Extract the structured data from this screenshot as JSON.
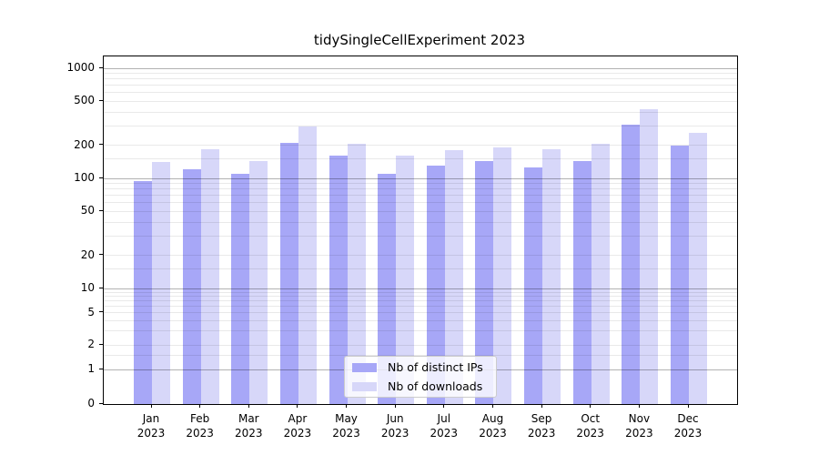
{
  "title": "tidySingleCellExperiment 2023",
  "chart_data": {
    "type": "bar",
    "title": "tidySingleCellExperiment 2023",
    "categories": [
      "Jan 2023",
      "Feb 2023",
      "Mar 2023",
      "Apr 2023",
      "May 2023",
      "Jun 2023",
      "Jul 2023",
      "Aug 2023",
      "Sep 2023",
      "Oct 2023",
      "Nov 2023",
      "Dec 2023"
    ],
    "series": [
      {
        "name": "Nb of distinct IPs",
        "color": "#a7a7f7",
        "values": [
          95,
          120,
          110,
          210,
          160,
          110,
          130,
          145,
          125,
          145,
          310,
          200
        ]
      },
      {
        "name": "Nb of downloads",
        "color": "#d7d7f9",
        "values": [
          140,
          185,
          145,
          295,
          205,
          160,
          180,
          190,
          185,
          205,
          425,
          260
        ]
      }
    ],
    "xlabel": "",
    "ylabel": "",
    "yscale": "symlog",
    "ylim": [
      0,
      1280
    ],
    "yticks": [
      0,
      1,
      2,
      5,
      10,
      20,
      50,
      100,
      200,
      500,
      1000
    ],
    "grid": true,
    "legend_position": "lower-center"
  },
  "axes": {
    "y_tick_labels": [
      "0",
      "1",
      "2",
      "5",
      "10",
      "20",
      "50",
      "100",
      "200",
      "500",
      "1000"
    ],
    "x_tick_line1": [
      "Jan",
      "Feb",
      "Mar",
      "Apr",
      "May",
      "Jun",
      "Jul",
      "Aug",
      "Sep",
      "Oct",
      "Nov",
      "Dec"
    ],
    "x_tick_line2": "2023",
    "gridline_major_values": [
      1,
      10,
      100,
      1000
    ],
    "gridline_minor_values": [
      1.5,
      2,
      3,
      4,
      5,
      6,
      7,
      8,
      9,
      15,
      20,
      30,
      40,
      50,
      60,
      70,
      80,
      90,
      150,
      200,
      300,
      400,
      500,
      600,
      700,
      800,
      900
    ]
  },
  "legend": {
    "items": [
      {
        "label": "Nb of distinct IPs",
        "color": "#a7a7f7"
      },
      {
        "label": "Nb of downloads",
        "color": "#d7d7f9"
      }
    ]
  }
}
